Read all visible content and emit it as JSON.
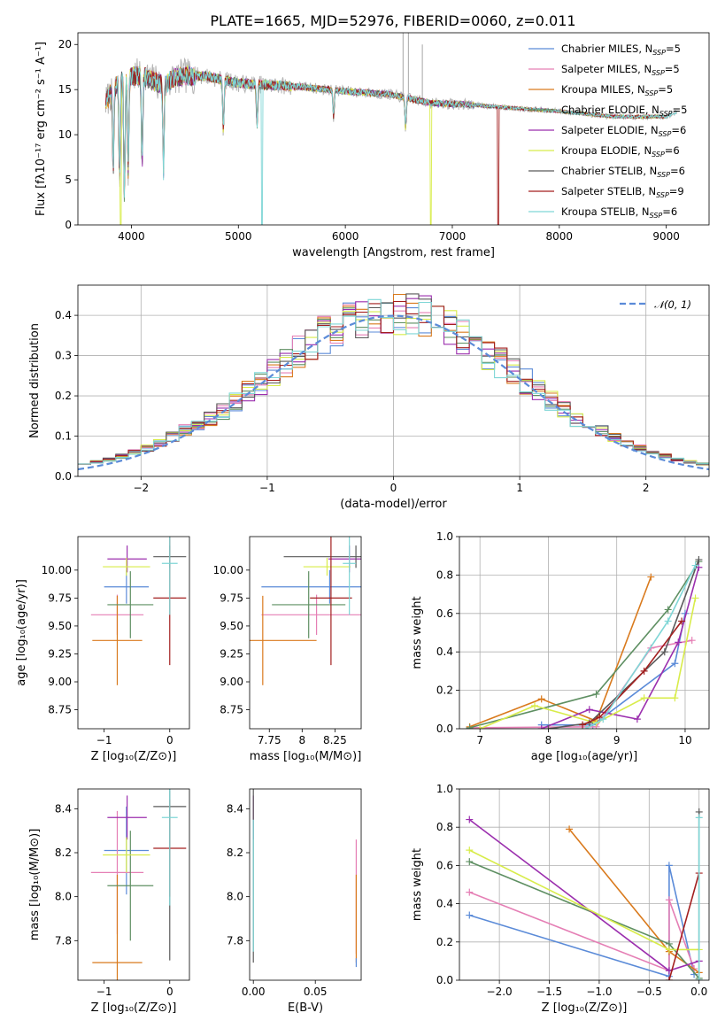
{
  "figure_title": "PLATE=1665, MJD=52976, FIBERID=0060, z=0.011",
  "colors": {
    "Chabrier MILES": "#5b8bd8",
    "Salpeter MILES": "#e57fb5",
    "Kroupa MILES": "#d97a1d",
    "Chabrier ELODIE": "#5e8f62",
    "Salpeter ELODIE": "#9b2fae",
    "Kroupa ELODIE": "#d8ec4a",
    "Chabrier STELIB": "#5a5a5a",
    "Salpeter STELIB": "#a31f1f",
    "Kroupa STELIB": "#7fd6d6"
  },
  "legend_spectrum": [
    {
      "name": "Chabrier MILES",
      "pre": "Chabrier MILES, N",
      "sub": "SSP",
      "post": "=5"
    },
    {
      "name": "Salpeter MILES",
      "pre": "Salpeter MILES, N",
      "sub": "SSP",
      "post": "=5"
    },
    {
      "name": "Kroupa MILES",
      "pre": "Kroupa MILES, N",
      "sub": "SSP",
      "post": "=5"
    },
    {
      "name": "Chabrier ELODIE",
      "pre": "Chabrier ELODIE, N",
      "sub": "SSP",
      "post": "=5"
    },
    {
      "name": "Salpeter ELODIE",
      "pre": "Salpeter ELODIE, N",
      "sub": "SSP",
      "post": "=6"
    },
    {
      "name": "Kroupa ELODIE",
      "pre": "Kroupa ELODIE, N",
      "sub": "SSP",
      "post": "=6"
    },
    {
      "name": "Chabrier STELIB",
      "pre": "Chabrier STELIB, N",
      "sub": "SSP",
      "post": "=6"
    },
    {
      "name": "Salpeter STELIB",
      "pre": "Salpeter STELIB, N",
      "sub": "SSP",
      "post": "=9"
    },
    {
      "name": "Kroupa STELIB",
      "pre": "Kroupa STELIB, N",
      "sub": "SSP",
      "post": "=6"
    }
  ],
  "chart_data": [
    {
      "id": "spectrum",
      "type": "line",
      "ylabel": "Flux [fλ10⁻¹⁷ erg cm⁻² s⁻¹ A⁻¹]",
      "xlabel": "wavelength [Angstrom, rest frame]",
      "xlim": [
        3500,
        9400
      ],
      "ylim": [
        0,
        21.3
      ],
      "xticks": [
        4000,
        5000,
        6000,
        7000,
        8000,
        9000
      ],
      "yticks": [
        0,
        5,
        10,
        15,
        20
      ],
      "grid": false,
      "legend": "right",
      "data_continuum": {
        "x": [
          3760,
          3800,
          3900,
          4000,
          4100,
          4200,
          4300,
          4400,
          4500,
          4700,
          5000,
          5300,
          5600,
          6000,
          6400,
          6800,
          7200,
          7500,
          8000,
          8500,
          9000,
          9100
        ],
        "y": [
          13.5,
          14.5,
          16.0,
          16.5,
          16.5,
          16.0,
          15.5,
          16.3,
          16.5,
          16.5,
          15.7,
          15.5,
          15.3,
          14.8,
          14.5,
          13.5,
          13.3,
          13.0,
          12.6,
          12.0,
          12.0,
          12.5
        ]
      },
      "data_absorption_lines": [
        {
          "x": 3830,
          "y": 6.0
        },
        {
          "x": 3890,
          "y": 5.3
        },
        {
          "x": 3935,
          "y": 3.5
        },
        {
          "x": 3970,
          "y": 6.0
        },
        {
          "x": 4100,
          "y": 7.0
        },
        {
          "x": 4300,
          "y": 6.0
        },
        {
          "x": 4860,
          "y": 10.5
        },
        {
          "x": 5175,
          "y": 11.0
        },
        {
          "x": 5890,
          "y": 12.0
        },
        {
          "x": 6563,
          "y": 10.8
        }
      ],
      "model_dropouts": [
        {
          "series": "Kroupa ELODIE",
          "x": 3900
        },
        {
          "series": "Kroupa STELIB",
          "x": 5220
        },
        {
          "series": "Kroupa ELODIE",
          "x": 6800
        },
        {
          "series": "Salpeter STELIB",
          "x": 7430
        }
      ],
      "model_ends": [
        {
          "series": "Chabrier MILES",
          "x": 7430
        },
        {
          "series": "Chabrier STELIB",
          "x": 9050
        },
        {
          "series": "Kroupa STELIB",
          "x": 9100
        }
      ]
    },
    {
      "id": "residuals",
      "type": "step",
      "ylabel": "Normed distribution",
      "xlabel": "(data-model)/error",
      "xlim": [
        -2.5,
        2.5
      ],
      "ylim": [
        0,
        0.475
      ],
      "xticks": [
        -2,
        -1,
        0,
        1,
        2
      ],
      "yticks": [
        0.0,
        0.1,
        0.2,
        0.3,
        0.4
      ],
      "grid": true,
      "legend": "top-right",
      "gaussian_label": "𝒩(0, 1)",
      "gaussian": {
        "mean": 0,
        "sigma": 1
      }
    },
    {
      "id": "age-Z",
      "type": "errorbar",
      "ylabel": "age  [log₁₀(age/yr)]",
      "xlabel": "Z [log₁₀(Z/Z⊙)]",
      "xlim": [
        -1.4,
        0.3
      ],
      "ylim": [
        8.58,
        10.3
      ],
      "xticks": [
        -1,
        0
      ],
      "yticks": [
        8.75,
        9.0,
        9.25,
        9.5,
        9.75,
        10.0
      ],
      "points": [
        {
          "series": "Chabrier MILES",
          "x": -0.66,
          "xerr": 0.34,
          "y": 9.85,
          "yerr": 0.15
        },
        {
          "series": "Salpeter MILES",
          "x": -0.8,
          "xerr": 0.4,
          "y": 9.6,
          "yerr": 0.18
        },
        {
          "series": "Kroupa MILES",
          "x": -0.8,
          "xerr": 0.38,
          "y": 9.37,
          "yerr": 0.4
        },
        {
          "series": "Chabrier ELODIE",
          "x": -0.6,
          "xerr": 0.35,
          "y": 9.69,
          "yerr": 0.3
        },
        {
          "series": "Salpeter ELODIE",
          "x": -0.65,
          "xerr": 0.3,
          "y": 10.1,
          "yerr": 0.12
        },
        {
          "series": "Kroupa ELODIE",
          "x": -0.66,
          "xerr": 0.36,
          "y": 10.03,
          "yerr": 0.08
        },
        {
          "series": "Chabrier STELIB",
          "x": 0.0,
          "xerr": 0.25,
          "y": 10.12,
          "yerr": 0.1
        },
        {
          "series": "Salpeter STELIB",
          "x": 0.0,
          "xerr": 0.25,
          "y": 9.75,
          "yerr": 0.6
        },
        {
          "series": "Kroupa STELIB",
          "x": 0.0,
          "xerr": 0.12,
          "y": 10.06,
          "yerr": 0.46
        }
      ]
    },
    {
      "id": "age-mass",
      "type": "errorbar",
      "ylabel": "",
      "xlabel": "mass [log₁₀(M/M⊙)]",
      "xlim": [
        7.6,
        8.45
      ],
      "ylim": [
        8.58,
        10.3
      ],
      "xticks": [
        7.75,
        8.0,
        8.25
      ],
      "yticks": [
        8.75,
        9.0,
        9.25,
        9.5,
        9.75,
        10.0
      ],
      "points": [
        {
          "series": "Chabrier MILES",
          "x": 8.21,
          "xerr": 0.52,
          "y": 9.85,
          "yerr": 0.15
        },
        {
          "series": "Salpeter MILES",
          "x": 8.11,
          "xerr": 0.42,
          "y": 9.6,
          "yerr": 0.18
        },
        {
          "series": "Kroupa MILES",
          "x": 7.7,
          "xerr": 0.41,
          "y": 9.37,
          "yerr": 0.4
        },
        {
          "series": "Chabrier ELODIE",
          "x": 8.05,
          "xerr": 0.28,
          "y": 9.69,
          "yerr": 0.3
        },
        {
          "series": "Salpeter ELODIE",
          "x": 8.36,
          "xerr": 0.16,
          "y": 10.1,
          "yerr": 0.12
        },
        {
          "series": "Kroupa ELODIE",
          "x": 8.19,
          "xerr": 0.18,
          "y": 10.03,
          "yerr": 0.08
        },
        {
          "series": "Chabrier STELIB",
          "x": 8.41,
          "xerr": 0.55,
          "y": 10.12,
          "yerr": 0.1
        },
        {
          "series": "Salpeter STELIB",
          "x": 8.22,
          "xerr": 0.16,
          "y": 9.75,
          "yerr": 0.6
        },
        {
          "series": "Kroupa STELIB",
          "x": 8.36,
          "xerr": 0.05,
          "y": 10.06,
          "yerr": 0.46
        }
      ]
    },
    {
      "id": "weight-age",
      "type": "line",
      "ylabel": "mass weight",
      "xlabel": "age  [log₁₀(age/yr)]",
      "xlim": [
        6.7,
        10.35
      ],
      "ylim": [
        0,
        1.0
      ],
      "xticks": [
        7,
        8,
        9,
        10
      ],
      "yticks": [
        0.0,
        0.2,
        0.4,
        0.6,
        0.8,
        1.0
      ],
      "grid": true,
      "series": [
        {
          "name": "Chabrier MILES",
          "points": [
            [
              7.9,
              0.02
            ],
            [
              8.65,
              0.02
            ],
            [
              9.85,
              0.34
            ],
            [
              10.0,
              0.6
            ]
          ]
        },
        {
          "name": "Salpeter MILES",
          "points": [
            [
              6.85,
              0.005
            ],
            [
              8.7,
              0.01
            ],
            [
              9.5,
              0.42
            ],
            [
              10.1,
              0.46
            ]
          ]
        },
        {
          "name": "Kroupa MILES",
          "points": [
            [
              6.85,
              0.01
            ],
            [
              7.9,
              0.155
            ],
            [
              8.7,
              0.04
            ],
            [
              9.5,
              0.79
            ]
          ]
        },
        {
          "name": "Chabrier ELODIE",
          "points": [
            [
              6.85,
              0.005
            ],
            [
              8.7,
              0.18
            ],
            [
              9.75,
              0.62
            ],
            [
              10.2,
              0.87
            ]
          ]
        },
        {
          "name": "Salpeter ELODIE",
          "points": [
            [
              7.9,
              0.0
            ],
            [
              8.6,
              0.1
            ],
            [
              9.3,
              0.05
            ],
            [
              9.9,
              0.45
            ],
            [
              10.2,
              0.84
            ]
          ]
        },
        {
          "name": "Kroupa ELODIE",
          "points": [
            [
              7.0,
              0.0
            ],
            [
              7.8,
              0.12
            ],
            [
              8.7,
              0.03
            ],
            [
              9.4,
              0.16
            ],
            [
              9.85,
              0.16
            ],
            [
              10.15,
              0.68
            ]
          ]
        },
        {
          "name": "Chabrier STELIB",
          "points": [
            [
              8.0,
              0.0
            ],
            [
              8.6,
              0.03
            ],
            [
              9.7,
              0.4
            ],
            [
              10.2,
              0.88
            ]
          ]
        },
        {
          "name": "Salpeter STELIB",
          "points": [
            [
              8.5,
              0.02
            ],
            [
              8.75,
              0.06
            ],
            [
              9.4,
              0.3
            ],
            [
              9.95,
              0.56
            ]
          ]
        },
        {
          "name": "Kroupa STELIB",
          "points": [
            [
              8.55,
              0.0
            ],
            [
              8.8,
              0.05
            ],
            [
              9.75,
              0.56
            ],
            [
              10.15,
              0.85
            ]
          ]
        }
      ]
    },
    {
      "id": "mass-Z",
      "type": "errorbar",
      "ylabel": "mass [log₁₀(M/M⊙)]",
      "xlabel": "Z [log₁₀(Z/Z⊙)]",
      "xlim": [
        -1.4,
        0.3
      ],
      "ylim": [
        7.62,
        8.49
      ],
      "xticks": [
        -1,
        0
      ],
      "yticks": [
        7.8,
        8.0,
        8.2,
        8.4
      ],
      "points": [
        {
          "series": "Chabrier MILES",
          "x": -0.66,
          "xerr": 0.34,
          "y": 8.21,
          "yerr": 0.2
        },
        {
          "series": "Salpeter MILES",
          "x": -0.8,
          "xerr": 0.4,
          "y": 8.11,
          "yerr": 0.28
        },
        {
          "series": "Kroupa MILES",
          "x": -0.8,
          "xerr": 0.38,
          "y": 7.7,
          "yerr": 0.4
        },
        {
          "series": "Chabrier ELODIE",
          "x": -0.6,
          "xerr": 0.35,
          "y": 8.05,
          "yerr": 0.25
        },
        {
          "series": "Salpeter ELODIE",
          "x": -0.65,
          "xerr": 0.3,
          "y": 8.36,
          "yerr": 0.1
        },
        {
          "series": "Kroupa ELODIE",
          "x": -0.66,
          "xerr": 0.36,
          "y": 8.19,
          "yerr": 0.08
        },
        {
          "series": "Chabrier STELIB",
          "x": 0.0,
          "xerr": 0.25,
          "y": 8.41,
          "yerr": 0.7
        },
        {
          "series": "Salpeter STELIB",
          "x": 0.0,
          "xerr": 0.25,
          "y": 8.22,
          "yerr": 0.22
        },
        {
          "series": "Kroupa STELIB",
          "x": 0.0,
          "xerr": 0.12,
          "y": 8.36,
          "yerr": 0.4
        }
      ]
    },
    {
      "id": "mass-EBV",
      "type": "errorbar",
      "ylabel": "",
      "xlabel": "E(B-V)",
      "xlim": [
        -0.003,
        0.087
      ],
      "ylim": [
        7.62,
        8.49
      ],
      "xticks": [
        0.0,
        0.05
      ],
      "yticks": [
        7.8,
        8.0,
        8.2,
        8.4
      ],
      "points": [
        {
          "series": "Salpeter MILES",
          "x": 0.083,
          "y": 8.0,
          "yerr": 0.26
        },
        {
          "series": "Kroupa MILES",
          "x": 0.083,
          "y": 7.9,
          "yerr": 0.2
        },
        {
          "series": "Chabrier MILES",
          "x": 0.083,
          "y": 7.7,
          "yerr": 0.02
        },
        {
          "series": "Salpeter ELODIE",
          "x": 0.0,
          "y": 8.36,
          "yerr": 0.1
        },
        {
          "series": "Chabrier STELIB",
          "x": 0.0,
          "y": 8.1,
          "yerr": 0.4
        },
        {
          "series": "Kroupa STELIB",
          "x": 0.0,
          "y": 8.05,
          "yerr": 0.3
        }
      ]
    },
    {
      "id": "weight-Z",
      "type": "line",
      "ylabel": "mass weight",
      "xlabel": "Z [log₁₀(Z/Z⊙)]",
      "xlim": [
        -2.4,
        0.1
      ],
      "ylim": [
        0,
        1.0
      ],
      "xticks": [
        -2.0,
        -1.5,
        -1.0,
        -0.5,
        0.0
      ],
      "yticks": [
        0.0,
        0.2,
        0.4,
        0.6,
        0.8,
        1.0
      ],
      "grid": true,
      "series": [
        {
          "name": "Chabrier MILES",
          "points": [
            [
              -2.3,
              0.34
            ],
            [
              -0.3,
              0.02
            ],
            [
              -0.3,
              0.6
            ],
            [
              -0.05,
              0.03
            ]
          ]
        },
        {
          "name": "Salpeter MILES",
          "points": [
            [
              -2.3,
              0.46
            ],
            [
              -0.3,
              0.05
            ],
            [
              -0.3,
              0.42
            ],
            [
              -0.05,
              0.06
            ]
          ]
        },
        {
          "name": "Kroupa MILES",
          "points": [
            [
              -1.3,
              0.79
            ],
            [
              -0.3,
              0.15
            ],
            [
              0.0,
              0.04
            ]
          ]
        },
        {
          "name": "Chabrier ELODIE",
          "points": [
            [
              -2.3,
              0.62
            ],
            [
              -0.3,
              0.19
            ],
            [
              0.0,
              0.01
            ]
          ]
        },
        {
          "name": "Salpeter ELODIE",
          "points": [
            [
              -2.3,
              0.84
            ],
            [
              -0.3,
              0.05
            ],
            [
              0.0,
              0.1
            ]
          ]
        },
        {
          "name": "Kroupa ELODIE",
          "points": [
            [
              -2.3,
              0.68
            ],
            [
              -0.3,
              0.16
            ],
            [
              0.0,
              0.16
            ]
          ]
        },
        {
          "name": "Chabrier STELIB",
          "points": [
            [
              0.0,
              0.0
            ],
            [
              0.0,
              0.88
            ]
          ]
        },
        {
          "name": "Salpeter STELIB",
          "points": [
            [
              -0.3,
              0.0
            ],
            [
              0.0,
              0.56
            ]
          ]
        },
        {
          "name": "Kroupa STELIB",
          "points": [
            [
              0.0,
              0.0
            ],
            [
              0.0,
              0.85
            ]
          ]
        }
      ]
    }
  ]
}
